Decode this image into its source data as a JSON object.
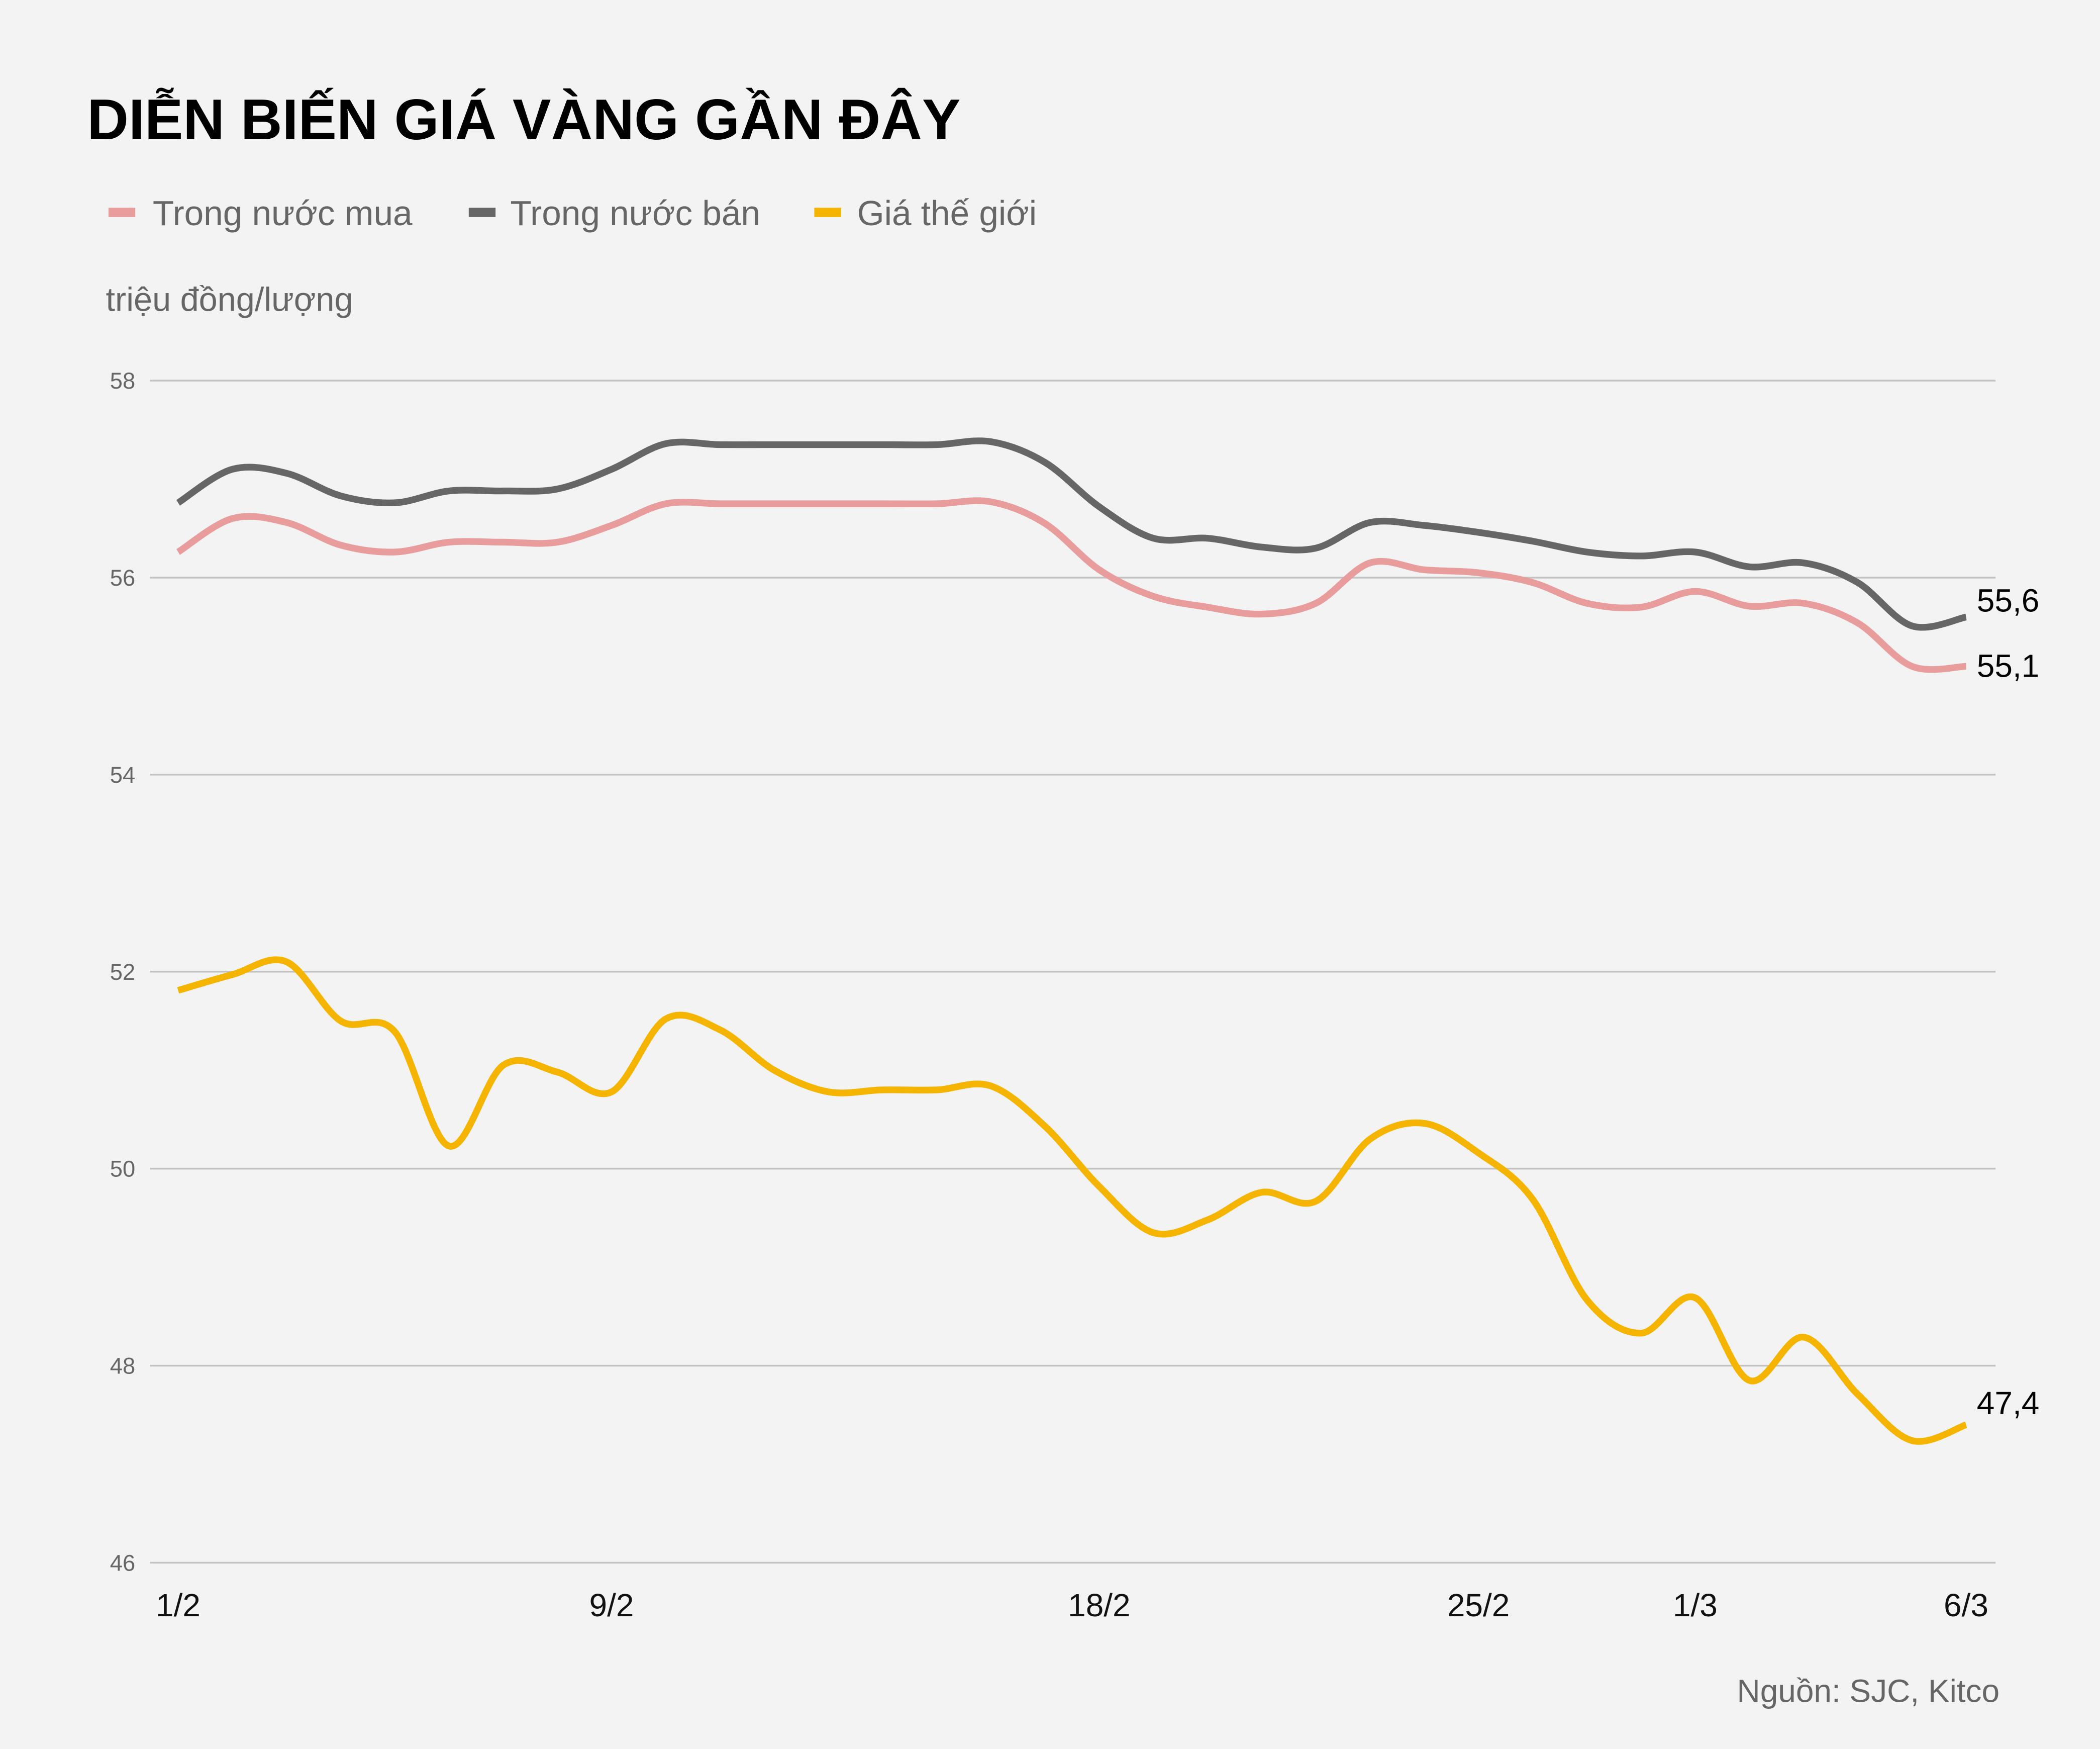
{
  "chart_data": {
    "type": "line",
    "title": "DIỄN BIẾN GIÁ VÀNG GẦN ĐÂY",
    "ylabel": "triệu đồng/lượng",
    "xlabel": "",
    "ylim": [
      46,
      58
    ],
    "yticks": [
      "46",
      "48",
      "50",
      "52",
      "54",
      "56",
      "58"
    ],
    "grid": true,
    "legend_position": "top-left",
    "x": [
      "1/2",
      "2/2",
      "3/2",
      "4/2",
      "5/2",
      "6/2",
      "7/2",
      "8/2",
      "9/2",
      "10/2",
      "11/2",
      "12/2",
      "13/2",
      "14/2",
      "15/2",
      "16/2",
      "17/2",
      "18/2",
      "19/2",
      "20/2",
      "21/2",
      "22/2",
      "23/2",
      "24/2",
      "25/2",
      "26/2",
      "27/2",
      "28/2",
      "1/3",
      "2/3",
      "3/3",
      "4/3",
      "5/3",
      "6/3"
    ],
    "xticks": [
      "1/2",
      "9/2",
      "18/2",
      "25/2",
      "1/3",
      "6/3"
    ],
    "series": [
      {
        "name": "Trong nước mua",
        "color": "#e99c9c",
        "values": [
          56.26,
          56.6,
          56.56,
          56.33,
          56.26,
          56.36,
          56.36,
          56.36,
          56.53,
          56.75,
          56.75,
          56.75,
          56.75,
          56.75,
          56.75,
          56.77,
          56.55,
          56.08,
          55.81,
          55.7,
          55.63,
          55.74,
          56.15,
          56.08,
          56.05,
          55.95,
          55.74,
          55.7,
          55.86,
          55.71,
          55.74,
          55.54,
          55.1,
          55.1
        ],
        "end_label": "55,1"
      },
      {
        "name": "Trong nước bán",
        "color": "#666666",
        "values": [
          56.76,
          57.1,
          57.06,
          56.83,
          56.76,
          56.88,
          56.88,
          56.9,
          57.1,
          57.36,
          57.35,
          57.35,
          57.35,
          57.35,
          57.35,
          57.38,
          57.17,
          56.72,
          56.4,
          56.4,
          56.31,
          56.3,
          56.56,
          56.53,
          56.46,
          56.37,
          56.26,
          56.22,
          56.26,
          56.11,
          56.15,
          55.95,
          55.51,
          55.6
        ],
        "end_label": "55,6"
      },
      {
        "name": "Giá thế giới",
        "color": "#f5b400",
        "values": [
          51.81,
          51.97,
          52.1,
          51.5,
          51.39,
          50.23,
          51.05,
          50.98,
          50.78,
          51.52,
          51.41,
          51.0,
          50.78,
          50.8,
          50.8,
          50.84,
          50.43,
          49.82,
          49.35,
          49.48,
          49.76,
          49.67,
          50.3,
          50.46,
          50.16,
          49.69,
          48.67,
          48.33,
          48.69,
          47.85,
          48.29,
          47.71,
          47.24,
          47.4
        ],
        "end_label": "47,4"
      }
    ],
    "source": "Nguồn: SJC, Kitco"
  }
}
